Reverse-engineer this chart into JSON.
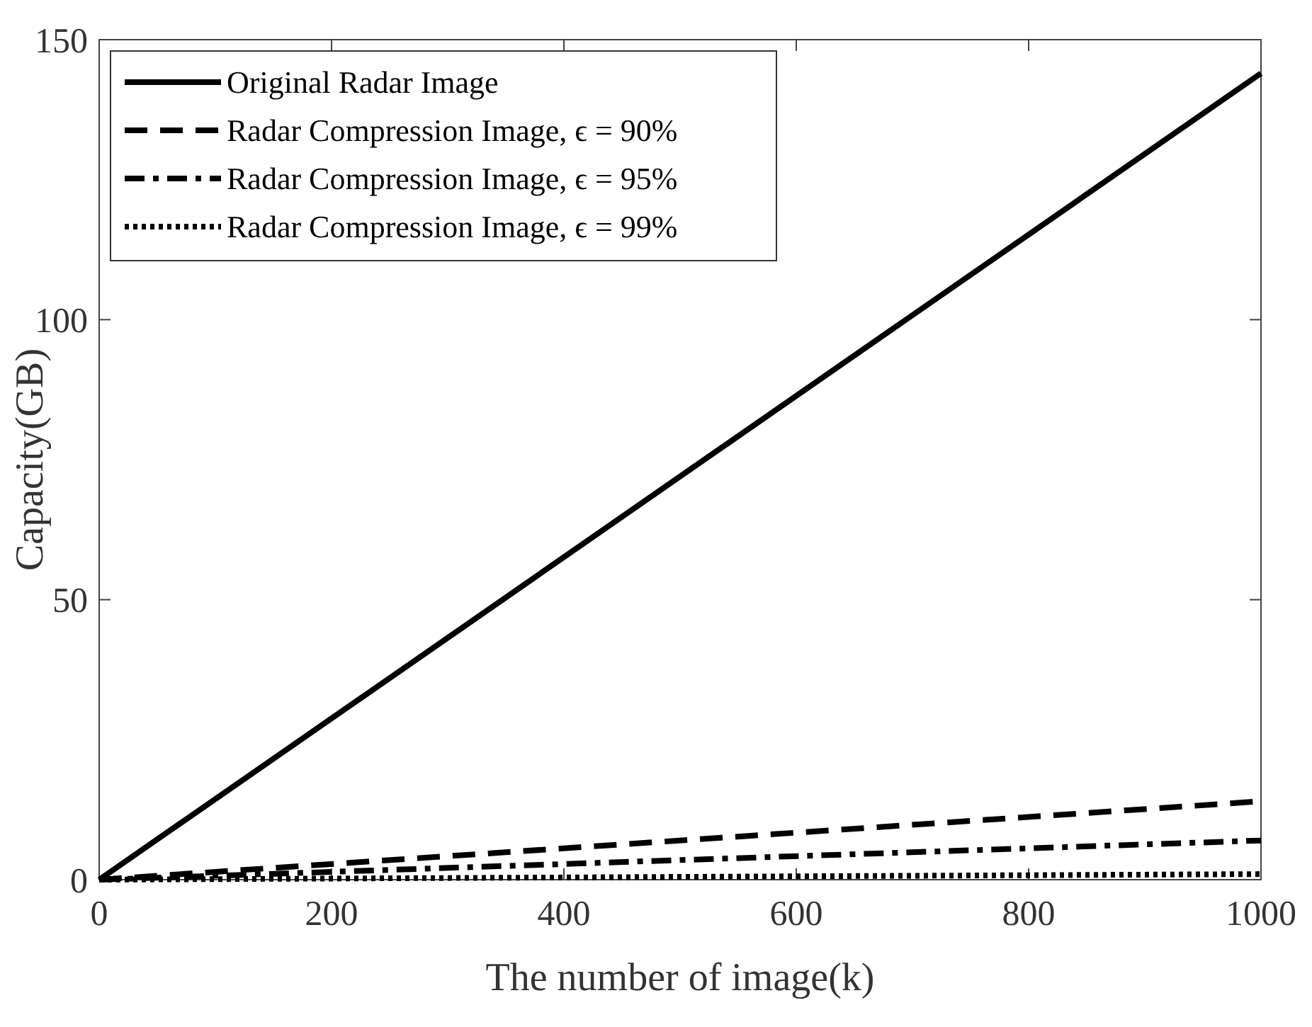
{
  "chart_data": {
    "type": "line",
    "xlabel": "The number of image(k)",
    "ylabel": "Capacity(GB)",
    "xlim": [
      0,
      1000
    ],
    "xticks": [
      0,
      200,
      400,
      600,
      800,
      1000
    ],
    "ylim": [
      0,
      150
    ],
    "yticks": [
      0,
      50,
      100,
      150
    ],
    "grid": false,
    "legend": "top left",
    "x": [
      0,
      1000
    ],
    "series": [
      {
        "name": "Original Radar Image",
        "color": "#000000",
        "line_style": "solid",
        "values": [
          0,
          144
        ]
      },
      {
        "name": "Radar Compression Image, ϵ = 90%",
        "color": "#000000",
        "line_style": "dashed",
        "values": [
          0,
          14
        ]
      },
      {
        "name": "Radar Compression Image, ϵ = 95%",
        "color": "#000000",
        "line_style": "dashdot",
        "values": [
          0,
          7
        ]
      },
      {
        "name": "Radar Compression Image, ϵ = 99%",
        "color": "#000000",
        "line_style": "dotted",
        "values": [
          0,
          1
        ]
      }
    ]
  }
}
